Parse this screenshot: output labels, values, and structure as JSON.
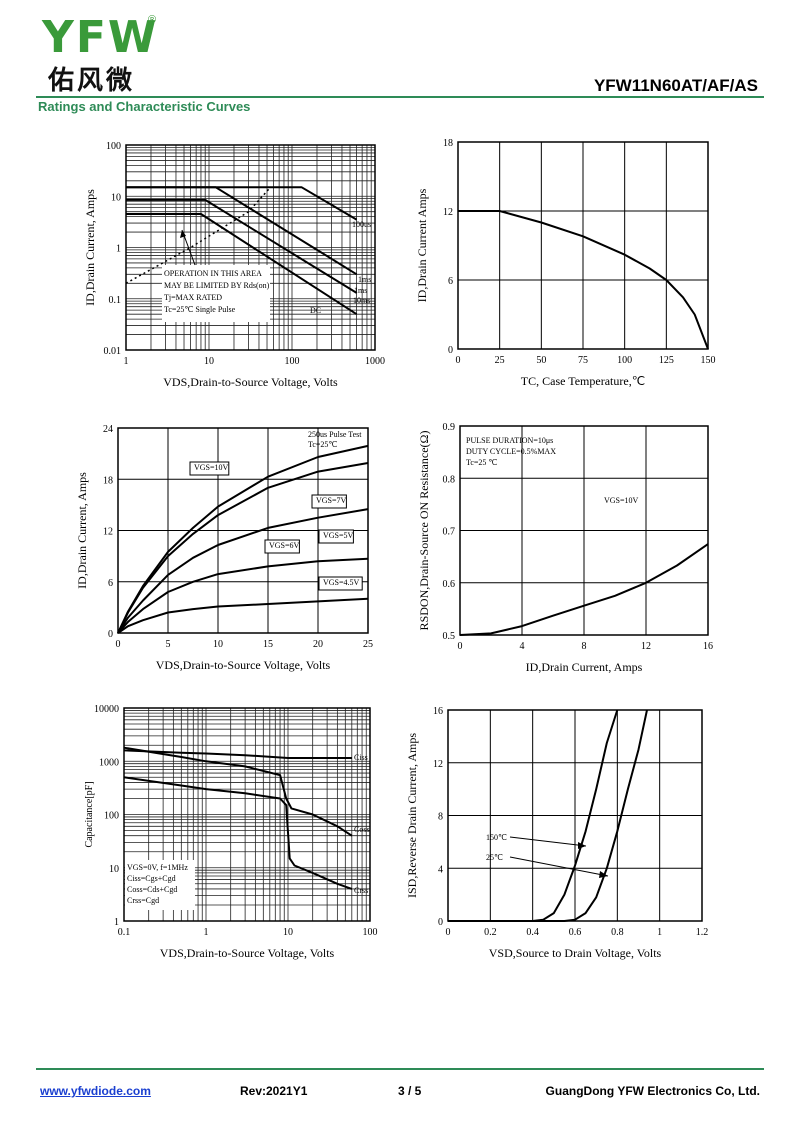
{
  "header": {
    "logo_letters": "YFW",
    "logo_registered": "®",
    "logo_chinese": "佑风微",
    "part_number": "YFW11N60AT/AF/AS",
    "section_title": "Ratings and Characteristic Curves"
  },
  "footer": {
    "url": "www.yfwdiode.com",
    "revision": "Rev:2021Y1",
    "page": "3 / 5",
    "company": "GuangDong YFW Electronics Co, Ltd."
  },
  "colors": {
    "brand_green": "#2e8b57",
    "link_blue": "#1a3fd0",
    "curve": "#000000"
  },
  "chart_data": [
    {
      "id": "soa",
      "type": "line",
      "xlabel": "VDS,Drain-to-Source Voltage, Volts",
      "ylabel": "ID,Drain Current, Amps",
      "xscale": "log",
      "yscale": "log",
      "xlim": [
        1,
        1000
      ],
      "ylim": [
        0.01,
        100
      ],
      "xticks": [
        1,
        10,
        100,
        1000
      ],
      "xtick_labels": [
        "1",
        "10",
        "100",
        "1000"
      ],
      "yticks": [
        0.01,
        0.1,
        1,
        10,
        100
      ],
      "ytick_labels": [
        "0.01",
        "0.1",
        "1",
        "10",
        "100"
      ],
      "grid": true,
      "series": [
        {
          "name": "100us",
          "x": [
            1,
            55,
            130,
            600
          ],
          "y": [
            15,
            15,
            15,
            3.5
          ]
        },
        {
          "name": "1ms",
          "x": [
            1,
            12,
            600
          ],
          "y": [
            15,
            15,
            0.3
          ]
        },
        {
          "name": "10ms",
          "x": [
            1,
            9,
            600
          ],
          "y": [
            8.5,
            8.5,
            0.13
          ]
        },
        {
          "name": "DC",
          "x": [
            1,
            8,
            600
          ],
          "y": [
            4.5,
            4.5,
            0.05
          ]
        },
        {
          "name": "Rds(on) limit",
          "x": [
            1,
            6,
            30,
            55
          ],
          "y": [
            0.2,
            1,
            5,
            15
          ],
          "style": "dotted"
        }
      ],
      "annotations": [
        {
          "text": "100us",
          "x": 480,
          "y": 4.5
        },
        {
          "text": "1ms",
          "x": 500,
          "y": 0.5
        },
        {
          "text": "1ms",
          "x": 500,
          "y": 0.22
        },
        {
          "text": "10ms",
          "x": 500,
          "y": 0.11
        },
        {
          "text": "DC",
          "x": 150,
          "y": 0.065
        }
      ],
      "note_lines": [
        "OPERATION IN THIS AREA",
        "MAY BE LIMITED BY Rds(on)",
        "Tj=MAX RATED",
        "Tc=25℃ Single Pulse"
      ]
    },
    {
      "id": "derating",
      "type": "line",
      "xlabel": "TC, Case Temperature,℃",
      "ylabel": "ID,Drain Current Amps",
      "xlim": [
        0,
        150
      ],
      "ylim": [
        0,
        18
      ],
      "xticks": [
        0,
        25,
        50,
        75,
        100,
        125,
        150
      ],
      "xtick_labels": [
        "0",
        "25",
        "50",
        "75",
        "100",
        "125",
        "150"
      ],
      "yticks": [
        0,
        6,
        12,
        18
      ],
      "ytick_labels": [
        "0",
        "6",
        "12",
        "18"
      ],
      "grid": true,
      "series": [
        {
          "name": "",
          "x": [
            0,
            25,
            50,
            75,
            100,
            115,
            125,
            135,
            142,
            150
          ],
          "y": [
            12,
            12,
            11,
            9.8,
            8.2,
            7,
            6,
            4.5,
            3,
            0
          ]
        }
      ]
    },
    {
      "id": "output",
      "type": "line",
      "xlabel": "VDS,Drain-to-Source Voltage, Volts",
      "ylabel": "ID,Drain Current, Amps",
      "xlim": [
        0,
        25
      ],
      "ylim": [
        0,
        24
      ],
      "xticks": [
        0,
        5,
        10,
        15,
        20,
        25
      ],
      "xtick_labels": [
        "0",
        "5",
        "10",
        "15",
        "20",
        "25"
      ],
      "yticks": [
        0,
        6,
        12,
        18,
        24
      ],
      "ytick_labels": [
        "0",
        "6",
        "12",
        "18",
        "24"
      ],
      "grid": true,
      "series": [
        {
          "name": "VGS=10V",
          "x": [
            0,
            1,
            2.5,
            5,
            7.5,
            10,
            15,
            20,
            25
          ],
          "y": [
            0,
            2.5,
            5.5,
            9.5,
            12.3,
            14.8,
            18.3,
            20.6,
            21.9
          ]
        },
        {
          "name": "VGS=7V",
          "x": [
            0,
            1,
            2.5,
            5,
            7.5,
            10,
            15,
            20,
            25
          ],
          "y": [
            0,
            2.4,
            5.3,
            9,
            11.6,
            13.8,
            17,
            18.9,
            19.9
          ]
        },
        {
          "name": "VGS=6V",
          "x": [
            0,
            1,
            2.5,
            5,
            7.5,
            10,
            15,
            20,
            25
          ],
          "y": [
            0,
            1.8,
            3.8,
            6.8,
            8.8,
            10.3,
            12.3,
            13.5,
            14.5
          ]
        },
        {
          "name": "VGS=5V",
          "x": [
            0,
            1,
            2.5,
            5,
            7.5,
            10,
            15,
            20,
            25
          ],
          "y": [
            0,
            1.3,
            2.8,
            4.8,
            6,
            6.9,
            7.8,
            8.4,
            8.7
          ]
        },
        {
          "name": "VGS=4.5V",
          "x": [
            0,
            1,
            2.5,
            5,
            7.5,
            10,
            15,
            20,
            25
          ],
          "y": [
            0,
            0.8,
            1.5,
            2.4,
            2.8,
            3.1,
            3.4,
            3.7,
            4
          ]
        }
      ],
      "note_lines": [
        "250us Pulse Test",
        "Tc=25℃"
      ]
    },
    {
      "id": "rdson",
      "type": "line",
      "xlabel": "ID,Drain Current, Amps",
      "ylabel": "RSDON,Drain-Source ON Resistance(Ω)",
      "xlim": [
        0,
        16
      ],
      "ylim": [
        0.5,
        0.9
      ],
      "xticks": [
        0,
        4,
        8,
        12,
        16
      ],
      "xtick_labels": [
        "0",
        "4",
        "8",
        "12",
        "16"
      ],
      "yticks": [
        0.5,
        0.6,
        0.7,
        0.8,
        0.9
      ],
      "ytick_labels": [
        "0.5",
        "0.6",
        "0.7",
        "0.8",
        "0.9"
      ],
      "grid": true,
      "series": [
        {
          "name": "VGS=10V",
          "x": [
            0,
            2,
            4,
            6,
            8,
            10,
            12,
            14,
            16
          ],
          "y": [
            0.5,
            0.503,
            0.517,
            0.537,
            0.556,
            0.575,
            0.6,
            0.633,
            0.674
          ]
        }
      ],
      "note_lines": [
        "PULSE DURATION=10μs",
        "DUTY CYCLE=0.5%MAX",
        "Tc=25 ℃"
      ],
      "annotations": [
        {
          "text": "VGS=10V"
        }
      ]
    },
    {
      "id": "capacitance",
      "type": "line",
      "xlabel": "VDS,Drain-to-Source Voltage, Volts",
      "ylabel": "Capacitance[pF]",
      "xscale": "log",
      "yscale": "log",
      "xlim": [
        0.1,
        100
      ],
      "ylim": [
        1,
        10000
      ],
      "xticks": [
        0.1,
        1,
        10,
        100
      ],
      "xtick_labels": [
        "0.1",
        "1",
        "10",
        "100"
      ],
      "yticks": [
        1,
        10,
        100,
        1000,
        10000
      ],
      "ytick_labels": [
        "1",
        "10",
        "100",
        "1000",
        "10000"
      ],
      "grid": true,
      "series": [
        {
          "name": "Ciss",
          "x": [
            0.1,
            0.5,
            1,
            3,
            10,
            30,
            60
          ],
          "y": [
            1600,
            1450,
            1400,
            1300,
            1150,
            1150,
            1150
          ]
        },
        {
          "name": "Coss",
          "x": [
            0.1,
            0.5,
            1,
            3,
            8,
            9.5,
            11,
            20,
            40,
            60
          ],
          "y": [
            1800,
            1200,
            1000,
            800,
            550,
            200,
            130,
            100,
            60,
            40
          ]
        },
        {
          "name": "Crss",
          "x": [
            0.1,
            0.5,
            1,
            3,
            8,
            9.5,
            10.5,
            12,
            20,
            40,
            60
          ],
          "y": [
            500,
            350,
            300,
            250,
            200,
            150,
            15,
            11,
            8,
            5,
            4
          ]
        }
      ],
      "note_lines": [
        "VGS=0V, f=1MHz",
        "Ciss=Cgs+Cgd",
        "Coss=Cds+Cgd",
        "Crss=Cgd"
      ]
    },
    {
      "id": "reverse_diode",
      "type": "line",
      "xlabel": "VSD,Source to Drain Voltage, Volts",
      "ylabel": "ISD,Reverse Drain Current, Amps",
      "xlim": [
        0,
        1.2
      ],
      "ylim": [
        0,
        16
      ],
      "xticks": [
        0,
        0.2,
        0.4,
        0.6,
        0.8,
        1.0,
        1.2
      ],
      "xtick_labels": [
        "0",
        "0.2",
        "0.4",
        "0.6",
        "0.8",
        "1",
        "1.2"
      ],
      "yticks": [
        0,
        4,
        8,
        12,
        16
      ],
      "ytick_labels": [
        "0",
        "4",
        "8",
        "12",
        "16"
      ],
      "grid": true,
      "series": [
        {
          "name": "150℃",
          "x": [
            0,
            0.4,
            0.45,
            0.5,
            0.55,
            0.6,
            0.65,
            0.7,
            0.75,
            0.8
          ],
          "y": [
            0,
            0,
            0.1,
            0.6,
            2,
            4.2,
            6.8,
            10,
            13.5,
            16
          ]
        },
        {
          "name": "25℃",
          "x": [
            0,
            0.55,
            0.6,
            0.65,
            0.7,
            0.75,
            0.8,
            0.85,
            0.9,
            0.94
          ],
          "y": [
            0,
            0,
            0.1,
            0.6,
            1.8,
            4,
            6.8,
            10,
            13,
            16
          ]
        }
      ]
    }
  ]
}
